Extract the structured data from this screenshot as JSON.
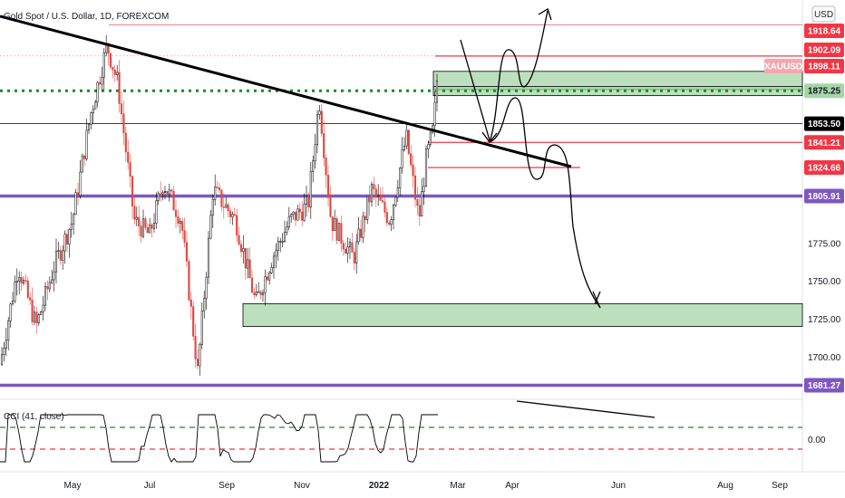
{
  "header": {
    "symbol_title": "Gold Spot / U.S. Dollar, 1D, FOREXCOM",
    "currency": "USD"
  },
  "indicator": {
    "label": "CCI (41, close)",
    "zero_label": "0.00"
  },
  "colors": {
    "up_candle": "#000000",
    "down_candle": "#e0473f",
    "purple_level": "#7e57c2",
    "green_dotted": "#1b8a2a",
    "red_line": "#f23645",
    "zone_fill": "#a5d6a7",
    "trendline": "#000000"
  },
  "chart_data": {
    "type": "candlestick",
    "title": "Gold Spot / U.S. Dollar, 1D, FOREXCOM",
    "symbol": "XAUUSD",
    "interval": "1D",
    "ylim": [
      1672,
      1935
    ],
    "y_ticks": [
      1700.0,
      1725.0,
      1750.0,
      1775.0
    ],
    "x_ticks": [
      "May",
      "Jul",
      "Sep",
      "Nov",
      "2022",
      "Mar",
      "Apr",
      "Jun",
      "Aug",
      "Sep"
    ],
    "price_labels": [
      {
        "text": "1918.64",
        "value": 1918.64,
        "style": "red"
      },
      {
        "text": "1902.09",
        "value": 1902.09,
        "style": "red"
      },
      {
        "text": "XAUUSD",
        "value": 1898.11,
        "style": "red-light"
      },
      {
        "text": "1898.11",
        "value": 1898.11,
        "style": "red"
      },
      {
        "text": "1875.25",
        "value": 1875.25,
        "style": "green"
      },
      {
        "text": "1853.50",
        "value": 1853.5,
        "style": "black"
      },
      {
        "text": "1841.21",
        "value": 1841.21,
        "style": "red"
      },
      {
        "text": "1824.66",
        "value": 1824.66,
        "style": "red"
      },
      {
        "text": "1805.91",
        "value": 1805.91,
        "style": "purple"
      },
      {
        "text": "1681.27",
        "value": 1681.27,
        "style": "purple"
      }
    ],
    "horizontal_levels": [
      {
        "value": 1918.64,
        "style": "red-thin"
      },
      {
        "value": 1853.5,
        "style": "black-thin"
      },
      {
        "value": 1805.91,
        "style": "purple-thick"
      },
      {
        "value": 1681.27,
        "style": "purple-thick"
      },
      {
        "value": 1875.25,
        "style": "green-dotted"
      }
    ],
    "zones": [
      {
        "from": 1876,
        "to": 1888
      },
      {
        "from": 1720,
        "to": 1735
      }
    ],
    "cci_levels": [
      100,
      -100
    ]
  }
}
